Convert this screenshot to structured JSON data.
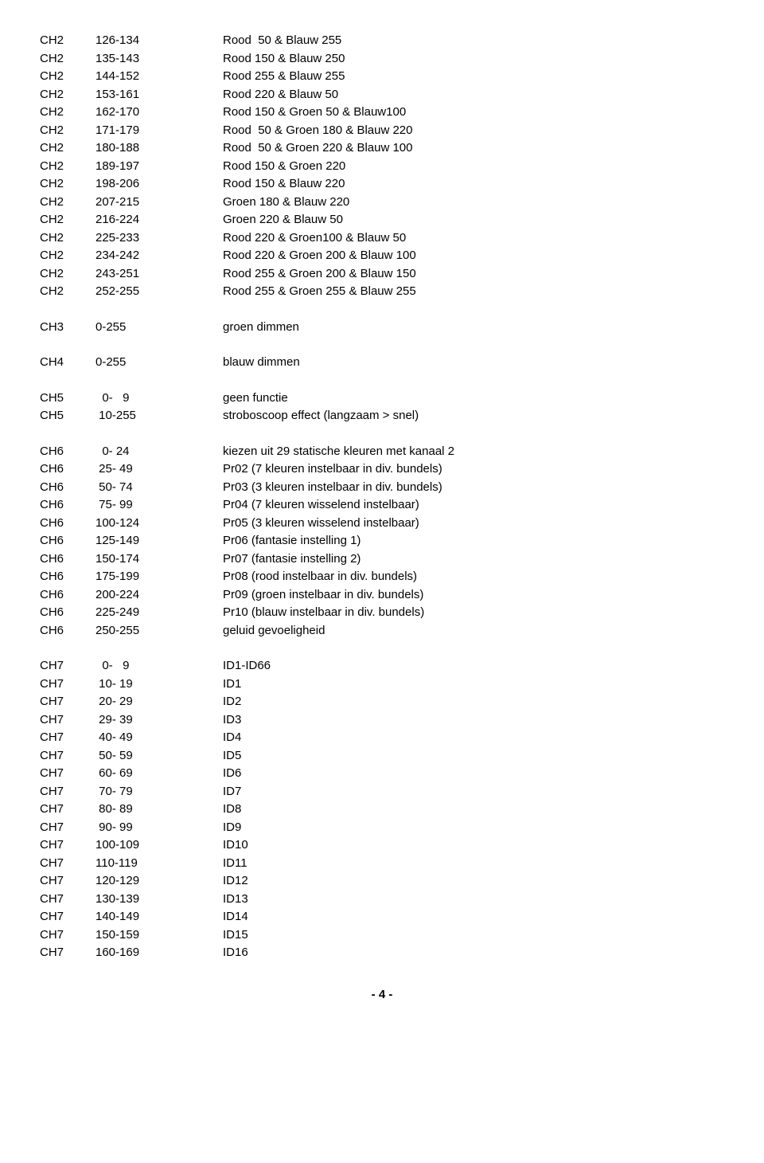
{
  "groups": [
    [
      {
        "ch": "CH2",
        "range": "126-134",
        "desc": "Rood  50 & Blauw 255"
      },
      {
        "ch": "CH2",
        "range": "135-143",
        "desc": "Rood 150 & Blauw 250"
      },
      {
        "ch": "CH2",
        "range": "144-152",
        "desc": "Rood 255 & Blauw 255"
      },
      {
        "ch": "CH2",
        "range": "153-161",
        "desc": "Rood 220 & Blauw 50"
      },
      {
        "ch": "CH2",
        "range": "162-170",
        "desc": "Rood 150 & Groen 50 & Blauw100"
      },
      {
        "ch": "CH2",
        "range": "171-179",
        "desc": "Rood  50 & Groen 180 & Blauw 220"
      },
      {
        "ch": "CH2",
        "range": "180-188",
        "desc": "Rood  50 & Groen 220 & Blauw 100"
      },
      {
        "ch": "CH2",
        "range": "189-197",
        "desc": "Rood 150 & Groen 220"
      },
      {
        "ch": "CH2",
        "range": "198-206",
        "desc": "Rood 150 & Blauw 220"
      },
      {
        "ch": "CH2",
        "range": "207-215",
        "desc": "Groen 180 & Blauw 220"
      },
      {
        "ch": "CH2",
        "range": "216-224",
        "desc": "Groen 220 & Blauw 50"
      },
      {
        "ch": "CH2",
        "range": "225-233",
        "desc": "Rood 220 & Groen100 & Blauw 50"
      },
      {
        "ch": "CH2",
        "range": "234-242",
        "desc": "Rood 220 & Groen 200 & Blauw 100"
      },
      {
        "ch": "CH2",
        "range": "243-251",
        "desc": "Rood 255 & Groen 200 & Blauw 150"
      },
      {
        "ch": "CH2",
        "range": "252-255",
        "desc": "Rood 255 & Groen 255 & Blauw 255"
      }
    ],
    [
      {
        "ch": "CH3",
        "range": "0-255",
        "desc": "groen dimmen"
      }
    ],
    [
      {
        "ch": "CH4",
        "range": "0-255",
        "desc": "blauw dimmen"
      }
    ],
    [
      {
        "ch": "CH5",
        "range": "  0-   9",
        "desc": "geen functie"
      },
      {
        "ch": "CH5",
        "range": " 10-255",
        "desc": "stroboscoop effect (langzaam > snel)"
      }
    ],
    [
      {
        "ch": "CH6",
        "range": "  0- 24",
        "desc": "kiezen uit 29 statische kleuren met kanaal 2"
      },
      {
        "ch": "CH6",
        "range": " 25- 49",
        "desc": "Pr02 (7 kleuren instelbaar in div. bundels)"
      },
      {
        "ch": "CH6",
        "range": " 50- 74",
        "desc": "Pr03 (3 kleuren instelbaar in div. bundels)"
      },
      {
        "ch": "CH6",
        "range": " 75- 99",
        "desc": "Pr04 (7 kleuren wisselend instelbaar)"
      },
      {
        "ch": "CH6",
        "range": "100-124",
        "desc": "Pr05 (3 kleuren wisselend instelbaar)"
      },
      {
        "ch": "CH6",
        "range": "125-149",
        "desc": "Pr06 (fantasie instelling 1)"
      },
      {
        "ch": "CH6",
        "range": "150-174",
        "desc": "Pr07 (fantasie instelling 2)"
      },
      {
        "ch": "CH6",
        "range": "175-199",
        "desc": "Pr08 (rood instelbaar in div. bundels)"
      },
      {
        "ch": "CH6",
        "range": "200-224",
        "desc": "Pr09 (groen instelbaar in div. bundels)"
      },
      {
        "ch": "CH6",
        "range": "225-249",
        "desc": "Pr10 (blauw instelbaar in div. bundels)"
      },
      {
        "ch": "CH6",
        "range": "250-255",
        "desc": "geluid gevoeligheid"
      }
    ],
    [
      {
        "ch": "CH7",
        "range": "  0-   9",
        "desc": "ID1-ID66"
      },
      {
        "ch": "CH7",
        "range": " 10- 19",
        "desc": "ID1"
      },
      {
        "ch": "CH7",
        "range": " 20- 29",
        "desc": "ID2"
      },
      {
        "ch": "CH7",
        "range": " 29- 39",
        "desc": "ID3"
      },
      {
        "ch": "CH7",
        "range": " 40- 49",
        "desc": "ID4"
      },
      {
        "ch": "CH7",
        "range": " 50- 59",
        "desc": "ID5"
      },
      {
        "ch": "CH7",
        "range": " 60- 69",
        "desc": "ID6"
      },
      {
        "ch": "CH7",
        "range": " 70- 79",
        "desc": "ID7"
      },
      {
        "ch": "CH7",
        "range": " 80- 89",
        "desc": "ID8"
      },
      {
        "ch": "CH7",
        "range": " 90- 99",
        "desc": "ID9"
      },
      {
        "ch": "CH7",
        "range": "100-109",
        "desc": "ID10"
      },
      {
        "ch": "CH7",
        "range": "110-119",
        "desc": "ID11"
      },
      {
        "ch": "CH7",
        "range": "120-129",
        "desc": "ID12"
      },
      {
        "ch": "CH7",
        "range": "130-139",
        "desc": "ID13"
      },
      {
        "ch": "CH7",
        "range": "140-149",
        "desc": "ID14"
      },
      {
        "ch": "CH7",
        "range": "150-159",
        "desc": "ID15"
      },
      {
        "ch": "CH7",
        "range": "160-169",
        "desc": "ID16"
      }
    ]
  ],
  "footer": "- 4 -"
}
